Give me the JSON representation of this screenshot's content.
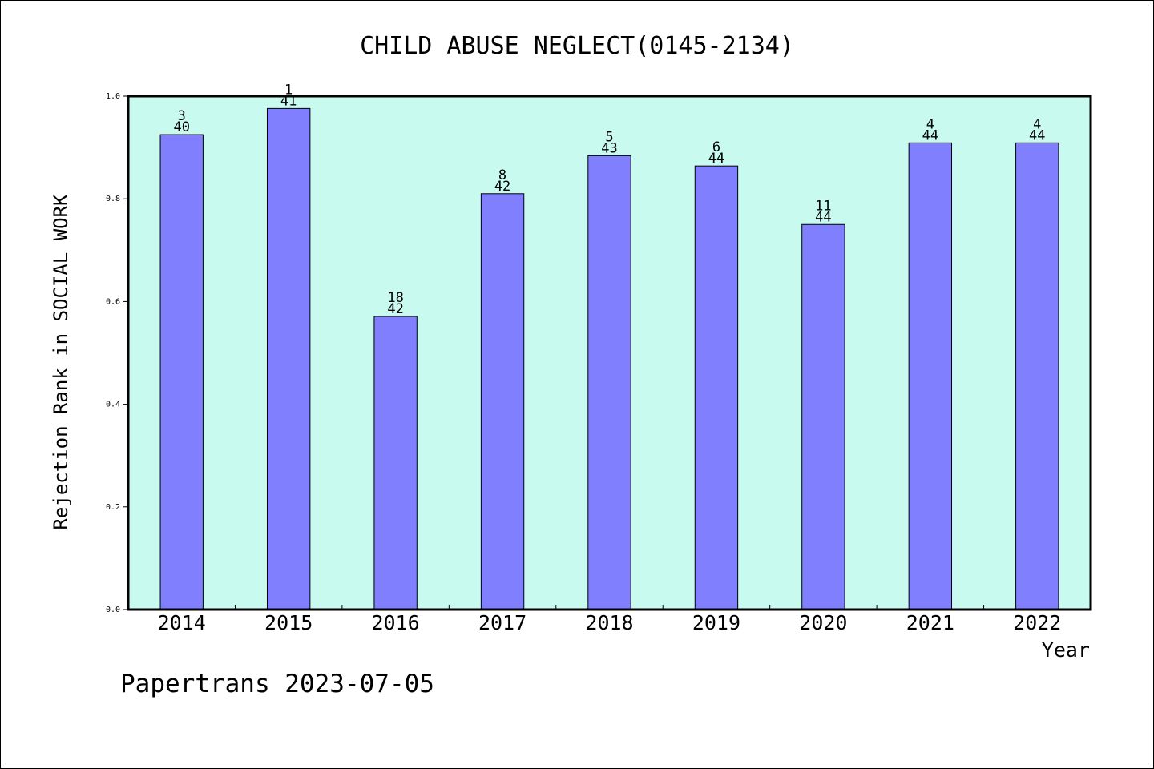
{
  "chart_data": {
    "type": "bar",
    "title": "CHILD ABUSE NEGLECT(0145-2134)",
    "xlabel": "Year",
    "ylabel": "Rejection Rank in SOCIAL WORK",
    "footer": "Papertrans 2023-07-05",
    "ylim": [
      0,
      1.0
    ],
    "yticks": [
      "0.0",
      "0.2",
      "0.4",
      "0.6",
      "0.8",
      "1.0"
    ],
    "grid": false,
    "categories": [
      "2014",
      "2015",
      "2016",
      "2017",
      "2018",
      "2019",
      "2020",
      "2021",
      "2022"
    ],
    "values": [
      0.925,
      0.976,
      0.571,
      0.81,
      0.884,
      0.864,
      0.75,
      0.909,
      0.909
    ],
    "label_top": [
      "3",
      "1",
      "18",
      "8",
      "5",
      "6",
      "11",
      "4",
      "4"
    ],
    "label_bottom": [
      "40",
      "41",
      "42",
      "42",
      "43",
      "44",
      "44",
      "44",
      "44"
    ],
    "colors": {
      "plot_background": "#c8faf0",
      "bar_fill": "#8080ff",
      "bar_stroke": "#000000",
      "axis": "#000000"
    }
  }
}
